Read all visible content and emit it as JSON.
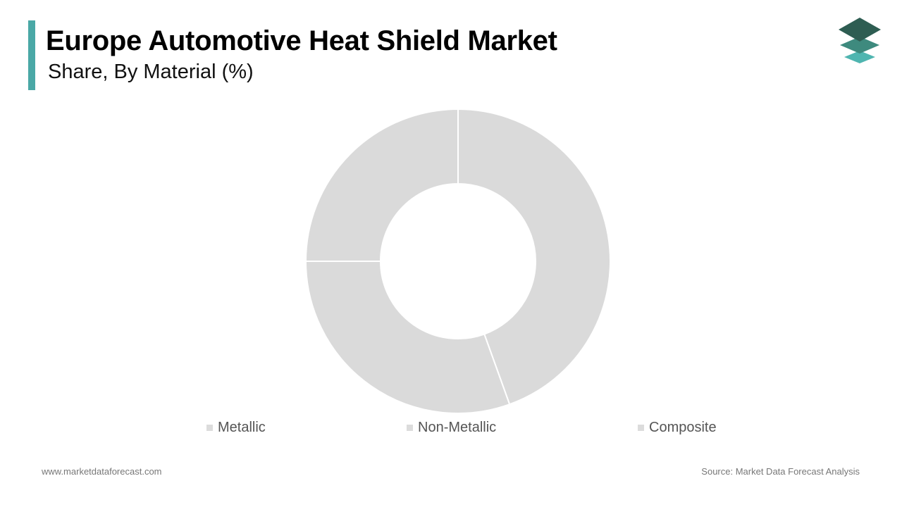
{
  "header": {
    "title": "Europe Automotive Heat Shield Market",
    "subtitle": "Share, By Material (%)"
  },
  "logo": {
    "icon": "stacked-layers-logo-icon",
    "colors": [
      "#2e5d52",
      "#3e8a7e",
      "#4fb5b0"
    ]
  },
  "chart_data": {
    "type": "pie",
    "variant": "donut",
    "title": "Europe Automotive Heat Shield Market",
    "subtitle": "Share, By Material (%)",
    "categories": [
      "Metallic",
      "Non-Metallic",
      "Composite"
    ],
    "values": [
      44.5,
      30.5,
      25.0
    ],
    "colors": [
      "#dadada",
      "#dadada",
      "#dadada"
    ],
    "legend_colors": [
      "#dcdcdc",
      "#dcdcdc",
      "#dcdcdc"
    ],
    "legend_position": "bottom",
    "start_angle": "12 o'clock",
    "direction": "clockwise"
  },
  "footer": {
    "website": "www.marketdataforecast.com",
    "source": "Source: Market Data Forecast Analysis"
  }
}
